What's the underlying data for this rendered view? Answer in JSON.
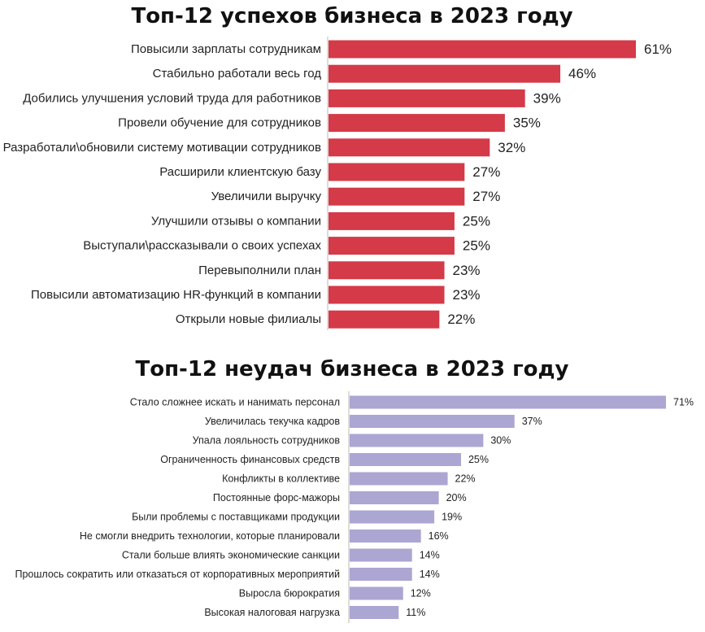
{
  "colors": {
    "success_bar": "#d43a48",
    "failure_bar": "#aba6d2",
    "axis_line": "#b8b8b8",
    "text": "#222222"
  },
  "chart_data": [
    {
      "type": "bar",
      "orientation": "horizontal",
      "title": "Топ-12 успехов бизнеса в 2023 году",
      "categories": [
        "Повысили зарплаты сотрудникам",
        "Стабильно работали весь год",
        "Добились улучшения условий труда для работников",
        "Провели обучение для сотрудников",
        "Разработали\\обновили систему мотивации сотрудников",
        "Расширили клиентскую базу",
        "Увеличили выручку",
        "Улучшили отзывы о компании",
        "Выступали\\рассказывали о своих успехах",
        "Перевыполнили план",
        "Повысили автоматизацию HR-функций в компании",
        "Открыли новые филиалы"
      ],
      "values": [
        61,
        46,
        39,
        35,
        32,
        27,
        27,
        25,
        25,
        23,
        23,
        22
      ],
      "value_labels": [
        "61%",
        "46%",
        "39%",
        "35%",
        "32%",
        "27%",
        "27%",
        "25%",
        "25%",
        "23%",
        "23%",
        "22%"
      ],
      "unit": "%"
    },
    {
      "type": "bar",
      "orientation": "horizontal",
      "title": "Топ-12 неудач бизнеса в 2023 году",
      "categories": [
        "Стало сложнее искать и нанимать персонал",
        "Увеличилась текучка кадров",
        "Упала лояльность сотрудников",
        "Ограниченность финансовых средств",
        "Конфликты в коллективе",
        "Постоянные форс-мажоры",
        "Были проблемы с поставщиками продукции",
        "Не смогли внедрить технологии, которые планировали",
        "Стали больше влиять экономические санкции",
        "Прошлось сократить или отказаться от корпоративных мероприятий",
        "Выросла бюрократия",
        "Высокая налоговая нагрузка"
      ],
      "values": [
        71,
        37,
        30,
        25,
        22,
        20,
        19,
        16,
        14,
        14,
        12,
        11
      ],
      "value_labels": [
        "71%",
        "37%",
        "30%",
        "25%",
        "22%",
        "20%",
        "19%",
        "16%",
        "14%",
        "14%",
        "12%",
        "11%"
      ],
      "unit": "%"
    }
  ]
}
